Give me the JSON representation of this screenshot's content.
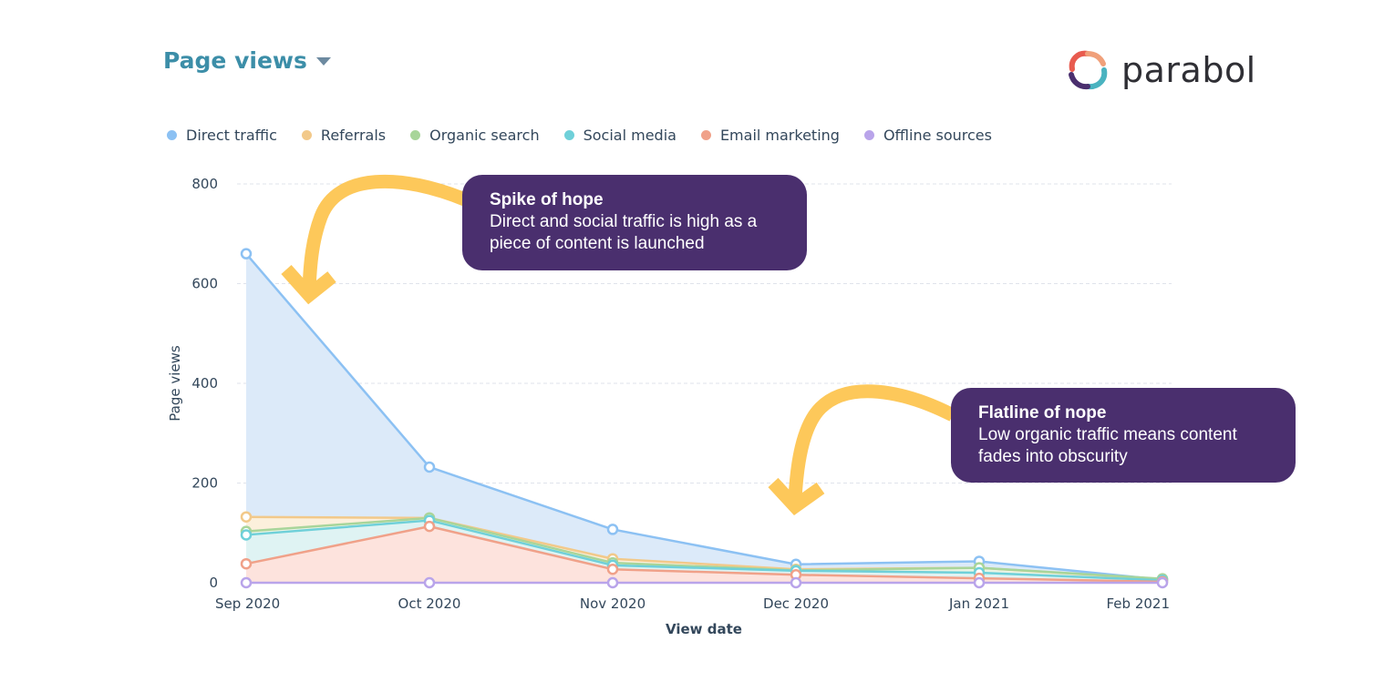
{
  "header": {
    "title": "Page views",
    "brand_name": "parabol"
  },
  "legend": [
    {
      "label": "Direct traffic",
      "color": "#8cc1f3"
    },
    {
      "label": "Referrals",
      "color": "#f2c98a"
    },
    {
      "label": "Organic search",
      "color": "#a8d59a"
    },
    {
      "label": "Social media",
      "color": "#6fd0d9"
    },
    {
      "label": "Email marketing",
      "color": "#f0a189"
    },
    {
      "label": "Offline sources",
      "color": "#b9a4ea"
    }
  ],
  "annotations": {
    "spike": {
      "title": "Spike of hope",
      "body": "Direct and social traffic is high as a piece of content is launched"
    },
    "flatline": {
      "title": "Flatline of nope",
      "body": "Low organic traffic means content fades into obscurity"
    }
  },
  "colors": {
    "arrow": "#fdc85a",
    "callout_bg": "#4a2f6e",
    "title": "#3c8ea8",
    "area_direct": "#dceaf9",
    "area_social": "#dff3f3",
    "area_email": "#fde3dd"
  },
  "chart_data": {
    "type": "line",
    "xlabel": "View date",
    "ylabel": "Page views",
    "ylim": [
      0,
      800
    ],
    "yticks": [
      0,
      200,
      400,
      600,
      800
    ],
    "categories": [
      "Sep 2020",
      "Oct 2020",
      "Nov 2020",
      "Dec 2020",
      "Jan 2021",
      "Feb 2021"
    ],
    "series": [
      {
        "name": "Direct traffic",
        "values": [
          660,
          232,
          107,
          37,
          43,
          6
        ]
      },
      {
        "name": "Referrals",
        "values": [
          132,
          130,
          48,
          27,
          30,
          7
        ]
      },
      {
        "name": "Organic search",
        "values": [
          103,
          130,
          40,
          25,
          30,
          8
        ]
      },
      {
        "name": "Social media",
        "values": [
          96,
          125,
          35,
          24,
          20,
          5
        ]
      },
      {
        "name": "Email marketing",
        "values": [
          38,
          113,
          27,
          16,
          9,
          2
        ]
      },
      {
        "name": "Offline sources",
        "values": [
          0,
          0,
          0,
          0,
          0,
          0
        ]
      }
    ]
  }
}
